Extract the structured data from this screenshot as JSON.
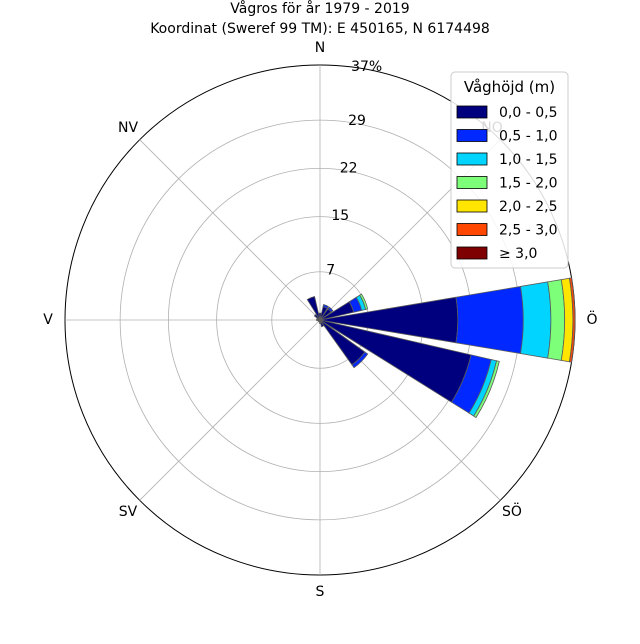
{
  "chart_data": {
    "type": "windrose",
    "title": "Vågros för år 1979 - 2019",
    "subtitle": "Koordinat (Sweref 99 TM): E 450165, N 6174498",
    "directions": [
      "N",
      "NO",
      "Ö",
      "SÖ",
      "S",
      "SV",
      "V",
      "NV"
    ],
    "radial_ticks": [
      7,
      15,
      22,
      29,
      37
    ],
    "radial_tick_labels": [
      "7",
      "15",
      "22",
      "29",
      "37%"
    ],
    "rmax": 37,
    "grid": true,
    "legend": {
      "title": "Våghöjd (m)",
      "position": "top-right",
      "entries": [
        "0,0 - 0,5",
        "0,5 - 1,0",
        "1,0 - 1,5",
        "1,5 - 2,0",
        "2,0 - 2,5",
        "2,5 - 3,0",
        "≥ 3,0"
      ]
    },
    "colors": [
      "#00007f",
      "#0028ff",
      "#00d4ff",
      "#7dff7a",
      "#ffe500",
      "#ff4700",
      "#7f0000"
    ],
    "sectors": [
      {
        "direction_deg": 0,
        "values": [
          1.0,
          0,
          0,
          0,
          0,
          0,
          0
        ]
      },
      {
        "direction_deg": 22.5,
        "values": [
          2.0,
          0.3,
          0,
          0,
          0,
          0,
          0
        ]
      },
      {
        "direction_deg": 45,
        "values": [
          2.0,
          0.3,
          0,
          0,
          0,
          0,
          0
        ]
      },
      {
        "direction_deg": 67.5,
        "values": [
          5.0,
          1.2,
          0.6,
          0.3,
          0,
          0,
          0
        ]
      },
      {
        "direction_deg": 90,
        "values": [
          20.0,
          9.5,
          4.0,
          2.0,
          1.2,
          0.3,
          0
        ]
      },
      {
        "direction_deg": 112.5,
        "values": [
          22.5,
          3.0,
          0.8,
          0.4,
          0,
          0,
          0
        ]
      },
      {
        "direction_deg": 135,
        "values": [
          8.0,
          0.5,
          0,
          0,
          0,
          0,
          0
        ]
      },
      {
        "direction_deg": 157.5,
        "values": [
          1.0,
          0,
          0,
          0,
          0,
          0,
          0
        ]
      },
      {
        "direction_deg": 180,
        "values": [
          0.5,
          0,
          0,
          0,
          0,
          0,
          0
        ]
      },
      {
        "direction_deg": 202.5,
        "values": [
          0.3,
          0,
          0,
          0,
          0,
          0,
          0
        ]
      },
      {
        "direction_deg": 225,
        "values": [
          0.3,
          0,
          0,
          0,
          0,
          0,
          0
        ]
      },
      {
        "direction_deg": 247.5,
        "values": [
          0.3,
          0,
          0,
          0,
          0,
          0,
          0
        ]
      },
      {
        "direction_deg": 270,
        "values": [
          0.5,
          0,
          0,
          0,
          0,
          0,
          0
        ]
      },
      {
        "direction_deg": 292.5,
        "values": [
          0.5,
          0,
          0,
          0,
          0,
          0,
          0
        ]
      },
      {
        "direction_deg": 315,
        "values": [
          1.0,
          0,
          0,
          0,
          0,
          0,
          0
        ]
      },
      {
        "direction_deg": 337.5,
        "values": [
          3.5,
          0,
          0,
          0,
          0,
          0,
          0
        ]
      }
    ]
  }
}
